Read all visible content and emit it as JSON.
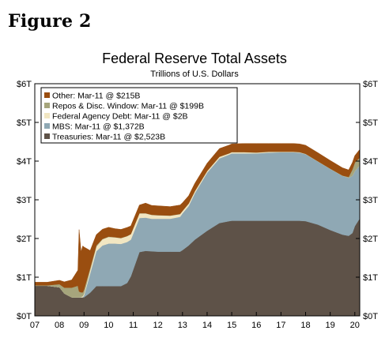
{
  "figure_label": "Figure 2",
  "chart_data": {
    "type": "area",
    "title": "Federal Reserve Total Assets",
    "subtitle": "Trillions of U.S. Dollars",
    "xlabel": "",
    "ylabel": "",
    "x_tick_labels": [
      "07",
      "08",
      "09",
      "10",
      "11",
      "12",
      "13",
      "14",
      "15",
      "16",
      "17",
      "18",
      "19",
      "20"
    ],
    "y_tick_labels": [
      "$0T",
      "$1T",
      "$2T",
      "$3T",
      "$4T",
      "$5T",
      "$6T"
    ],
    "ylim": [
      0,
      6
    ],
    "xlim": [
      2007.0,
      2020.2
    ],
    "stacked": true,
    "grid": false,
    "legend_position": "top-left",
    "x": [
      2007.0,
      2007.5,
      2008.0,
      2008.2,
      2008.5,
      2008.75,
      2008.8,
      2008.88,
      2008.95,
      2009.0,
      2009.25,
      2009.5,
      2009.75,
      2010.0,
      2010.25,
      2010.5,
      2010.75,
      2010.9,
      2011.25,
      2011.5,
      2011.75,
      2012.0,
      2012.5,
      2012.9,
      2013.0,
      2013.25,
      2013.5,
      2014.0,
      2014.5,
      2014.9,
      2015.0,
      2015.5,
      2016.0,
      2016.5,
      2017.0,
      2017.5,
      2017.75,
      2018.0,
      2018.5,
      2019.0,
      2019.5,
      2019.75,
      2019.9,
      2020.0,
      2020.2
    ],
    "series": [
      {
        "name": "Treasuries: Mar-11 @ $2,523B",
        "color": "#5e5248",
        "values": [
          0.78,
          0.78,
          0.74,
          0.58,
          0.48,
          0.48,
          0.48,
          0.48,
          0.48,
          0.48,
          0.6,
          0.77,
          0.77,
          0.77,
          0.77,
          0.77,
          0.85,
          1.02,
          1.65,
          1.68,
          1.67,
          1.66,
          1.66,
          1.66,
          1.7,
          1.82,
          1.97,
          2.2,
          2.4,
          2.45,
          2.46,
          2.46,
          2.46,
          2.46,
          2.46,
          2.46,
          2.46,
          2.45,
          2.36,
          2.22,
          2.1,
          2.07,
          2.14,
          2.32,
          2.52
        ]
      },
      {
        "name": "MBS: Mar-11 @ $1,372B",
        "color": "#8fa8b4",
        "values": [
          0,
          0,
          0,
          0,
          0,
          0,
          0,
          0,
          0,
          0.05,
          0.5,
          0.9,
          1.05,
          1.1,
          1.1,
          1.09,
          1.06,
          0.95,
          0.88,
          0.86,
          0.84,
          0.85,
          0.85,
          0.9,
          0.95,
          1.02,
          1.2,
          1.5,
          1.67,
          1.72,
          1.74,
          1.74,
          1.74,
          1.76,
          1.77,
          1.77,
          1.76,
          1.73,
          1.63,
          1.58,
          1.52,
          1.5,
          1.48,
          1.42,
          1.37
        ]
      },
      {
        "name": "Federal Agency Debt: Mar-11 @ $2B",
        "color": "#f1e6c2",
        "values": [
          0,
          0,
          0,
          0,
          0,
          0,
          0,
          0.01,
          0.03,
          0.05,
          0.09,
          0.12,
          0.16,
          0.17,
          0.16,
          0.15,
          0.15,
          0.14,
          0.12,
          0.11,
          0.1,
          0.09,
          0.08,
          0.07,
          0.06,
          0.06,
          0.05,
          0.04,
          0.04,
          0.03,
          0.03,
          0.03,
          0.02,
          0.02,
          0.01,
          0.01,
          0.01,
          0.005,
          0.002,
          0.002,
          0.002,
          0.002,
          0.002,
          0.002,
          0.002
        ]
      },
      {
        "name": "Repos & Disc. Window: Mar-11 @ $199B",
        "color": "#a6a57c",
        "values": [
          0.01,
          0.01,
          0.08,
          0.15,
          0.25,
          0.3,
          0.15,
          0.12,
          0.1,
          0.1,
          0.05,
          0.03,
          0.01,
          0.01,
          0.005,
          0.005,
          0.005,
          0.005,
          0.005,
          0.005,
          0.005,
          0.005,
          0.005,
          0.005,
          0.005,
          0.005,
          0.005,
          0.005,
          0.005,
          0.005,
          0.005,
          0.005,
          0.005,
          0.005,
          0.005,
          0.005,
          0.005,
          0.005,
          0.005,
          0.005,
          0.005,
          0.02,
          0.16,
          0.22,
          0.2
        ]
      },
      {
        "name": "Other: Mar-11 @ $215B",
        "color": "#9a4e10",
        "values": [
          0.08,
          0.08,
          0.1,
          0.15,
          0.2,
          0.4,
          1.6,
          1.05,
          1.2,
          1.1,
          0.45,
          0.28,
          0.25,
          0.24,
          0.22,
          0.22,
          0.22,
          0.21,
          0.21,
          0.26,
          0.24,
          0.24,
          0.23,
          0.23,
          0.21,
          0.2,
          0.2,
          0.2,
          0.21,
          0.21,
          0.21,
          0.22,
          0.23,
          0.21,
          0.21,
          0.21,
          0.21,
          0.22,
          0.22,
          0.21,
          0.2,
          0.18,
          0.18,
          0.18,
          0.21
        ]
      }
    ]
  }
}
